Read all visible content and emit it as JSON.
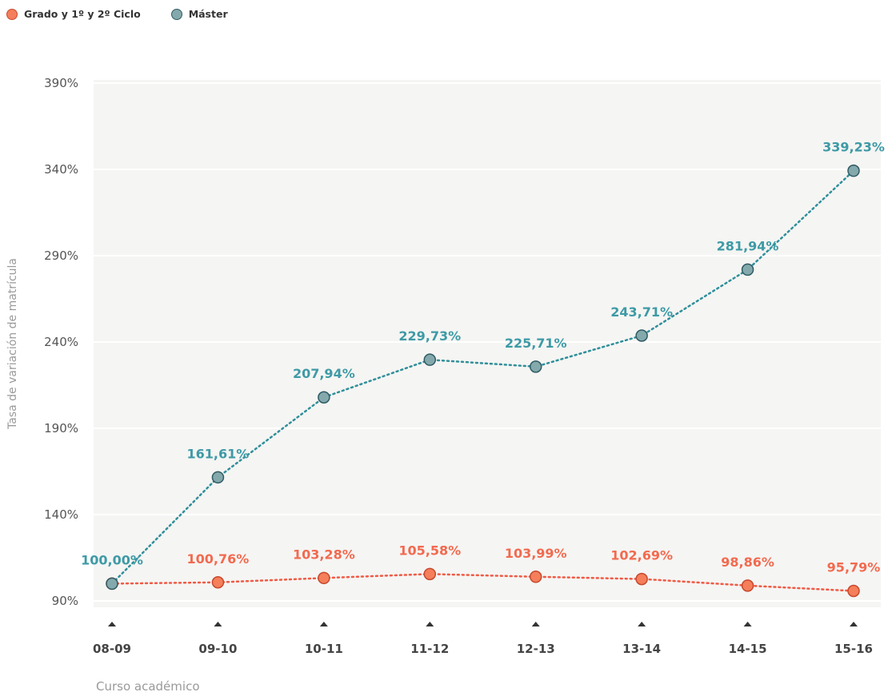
{
  "chart_data": {
    "type": "line",
    "xlabel": "Curso académico",
    "ylabel": "Tasa de variación de matrícula",
    "ylim": [
      90,
      390
    ],
    "yticks": [
      90,
      140,
      190,
      240,
      290,
      340,
      390
    ],
    "ytick_labels": [
      "90%",
      "140%",
      "190%",
      "240%",
      "290%",
      "340%",
      "390%"
    ],
    "categories": [
      "08-09",
      "09-10",
      "10-11",
      "11-12",
      "12-13",
      "13-14",
      "14-15",
      "15-16"
    ],
    "legend_position": "top-left",
    "grid": true,
    "series": [
      {
        "name": "Grado y 1º y 2º Ciclo",
        "color": "#f47f5a",
        "label_color": "#f26a4f",
        "line_color": "#ef5a45",
        "values": [
          100.0,
          100.76,
          103.28,
          105.58,
          103.99,
          102.69,
          98.86,
          95.79
        ],
        "labels": [
          "",
          "100,76%",
          "103,28%",
          "105,58%",
          "103,99%",
          "102,69%",
          "98,86%",
          "95,79%"
        ]
      },
      {
        "name": "Máster",
        "color": "#84a9ac",
        "label_color": "#3e9aa6",
        "line_color": "#2f8f9b",
        "values": [
          100.0,
          161.61,
          207.94,
          229.73,
          225.71,
          243.71,
          281.94,
          339.23
        ],
        "labels": [
          "100,00%",
          "161,61%",
          "207,94%",
          "229,73%",
          "225,71%",
          "243,71%",
          "281,94%",
          "339,23%"
        ]
      }
    ]
  }
}
